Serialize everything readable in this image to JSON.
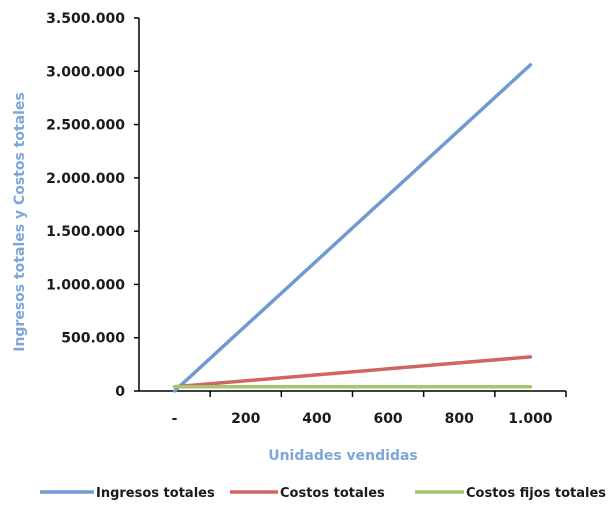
{
  "chart_data": {
    "type": "line",
    "title": "",
    "xlabel": "Unidades vendidas",
    "ylabel": "Ingresos totales y Costos totales",
    "x": [
      0,
      1000
    ],
    "x_ticks": [
      {
        "value": 0,
        "label": "-"
      },
      {
        "value": 200,
        "label": "200"
      },
      {
        "value": 400,
        "label": "400"
      },
      {
        "value": 600,
        "label": "600"
      },
      {
        "value": 800,
        "label": "800"
      },
      {
        "value": 1000,
        "label": "1.000"
      }
    ],
    "xlim": [
      -100,
      1100
    ],
    "y_ticks": [
      {
        "value": 0,
        "label": "0"
      },
      {
        "value": 500000,
        "label": "500.000"
      },
      {
        "value": 1000000,
        "label": "1.000.000"
      },
      {
        "value": 1500000,
        "label": "1.500.000"
      },
      {
        "value": 2000000,
        "label": "2.000.000"
      },
      {
        "value": 2500000,
        "label": "2.500.000"
      },
      {
        "value": 3000000,
        "label": "3.000.000"
      },
      {
        "value": 3500000,
        "label": "3.500.000"
      }
    ],
    "ylim": [
      0,
      3500000
    ],
    "grid": false,
    "legend_position": "bottom",
    "series": [
      {
        "name": "Ingresos totales",
        "color": "#6f9bd1",
        "values": [
          0,
          3060000
        ]
      },
      {
        "name": "Costos totales",
        "color": "#cd6664",
        "values": [
          40000,
          320000
        ]
      },
      {
        "name": "Costos fijos totales",
        "color": "#a5c56e",
        "values": [
          40000,
          40000
        ]
      }
    ]
  }
}
